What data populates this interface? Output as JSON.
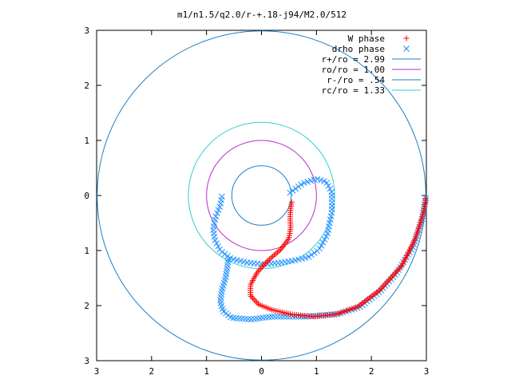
{
  "chart_data": {
    "type": "scatter",
    "title": "m1/n1.5/q2.0/r-+.18-j94/M2.0/512",
    "xlim": [
      -3,
      3
    ],
    "ylim": [
      -3,
      3
    ],
    "x_ticks": [
      {
        "value": -3,
        "label": "3"
      },
      {
        "value": -2,
        "label": "2"
      },
      {
        "value": -1,
        "label": "1"
      },
      {
        "value": 0,
        "label": "0"
      },
      {
        "value": 1,
        "label": "1"
      },
      {
        "value": 2,
        "label": "2"
      },
      {
        "value": 3,
        "label": "3"
      }
    ],
    "y_ticks": [
      {
        "value": 3,
        "label": "3"
      },
      {
        "value": 2,
        "label": "2"
      },
      {
        "value": 1,
        "label": "1"
      },
      {
        "value": 0,
        "label": "0"
      },
      {
        "value": -1,
        "label": "1"
      },
      {
        "value": -2,
        "label": "2"
      },
      {
        "value": -3,
        "label": "3"
      }
    ],
    "grid": false,
    "legend_position": "top-right",
    "point_series": [
      {
        "name": "W phase",
        "marker": "+",
        "color": "#ff0000",
        "path": [
          [
            0.55,
            -0.12
          ],
          [
            0.53,
            -0.25
          ],
          [
            0.52,
            -0.4
          ],
          [
            0.53,
            -0.58
          ],
          [
            0.5,
            -0.78
          ],
          [
            0.35,
            -0.98
          ],
          [
            0.12,
            -1.18
          ],
          [
            -0.08,
            -1.4
          ],
          [
            -0.2,
            -1.62
          ],
          [
            -0.2,
            -1.82
          ],
          [
            -0.05,
            -1.98
          ],
          [
            0.2,
            -2.08
          ],
          [
            0.55,
            -2.16
          ],
          [
            0.95,
            -2.2
          ],
          [
            1.35,
            -2.16
          ],
          [
            1.75,
            -2.02
          ],
          [
            2.15,
            -1.72
          ],
          [
            2.55,
            -1.28
          ],
          [
            2.8,
            -0.78
          ],
          [
            2.95,
            -0.3
          ],
          [
            2.99,
            -0.05
          ]
        ]
      },
      {
        "name": "drho phase",
        "marker": "x",
        "color": "#1e90ff",
        "path": [
          [
            0.52,
            0.05
          ],
          [
            0.75,
            0.22
          ],
          [
            1.0,
            0.3
          ],
          [
            1.18,
            0.25
          ],
          [
            1.28,
            0.05
          ],
          [
            1.28,
            -0.3
          ],
          [
            1.2,
            -0.7
          ],
          [
            1.05,
            -0.98
          ],
          [
            0.85,
            -1.12
          ],
          [
            0.6,
            -1.18
          ],
          [
            0.35,
            -1.22
          ],
          [
            0.05,
            -1.25
          ],
          [
            -0.25,
            -1.22
          ],
          [
            -0.55,
            -1.15
          ],
          [
            -0.75,
            -1.0
          ],
          [
            -0.85,
            -0.8
          ],
          [
            -0.88,
            -0.6
          ],
          [
            -0.83,
            -0.38
          ],
          [
            -0.75,
            -0.18
          ],
          [
            -0.72,
            -0.02
          ]
        ],
        "path_2": [
          [
            -0.6,
            -1.16
          ],
          [
            -0.62,
            -1.28
          ],
          [
            -0.65,
            -1.48
          ],
          [
            -0.72,
            -1.72
          ],
          [
            -0.75,
            -1.93
          ],
          [
            -0.7,
            -2.1
          ],
          [
            -0.55,
            -2.22
          ],
          [
            -0.2,
            -2.25
          ],
          [
            0.2,
            -2.2
          ],
          [
            0.8,
            -2.2
          ],
          [
            1.4,
            -2.15
          ],
          [
            1.8,
            -2.02
          ],
          [
            2.15,
            -1.75
          ],
          [
            2.45,
            -1.42
          ],
          [
            2.75,
            -0.95
          ],
          [
            2.92,
            -0.45
          ],
          [
            2.99,
            -0.05
          ]
        ]
      }
    ],
    "circles": [
      {
        "label": "r+/ro = 2.99",
        "radius": 2.99,
        "color": "#1f7fc4"
      },
      {
        "label": "ro/ro = 1.00",
        "radius": 1.0,
        "color": "#b82ec6"
      },
      {
        "label": "r-/ro = .54",
        "radius": 0.54,
        "color": "#1f7fc4"
      },
      {
        "label": "rc/ro = 1.33",
        "radius": 1.33,
        "color": "#2fd0d6"
      }
    ]
  }
}
